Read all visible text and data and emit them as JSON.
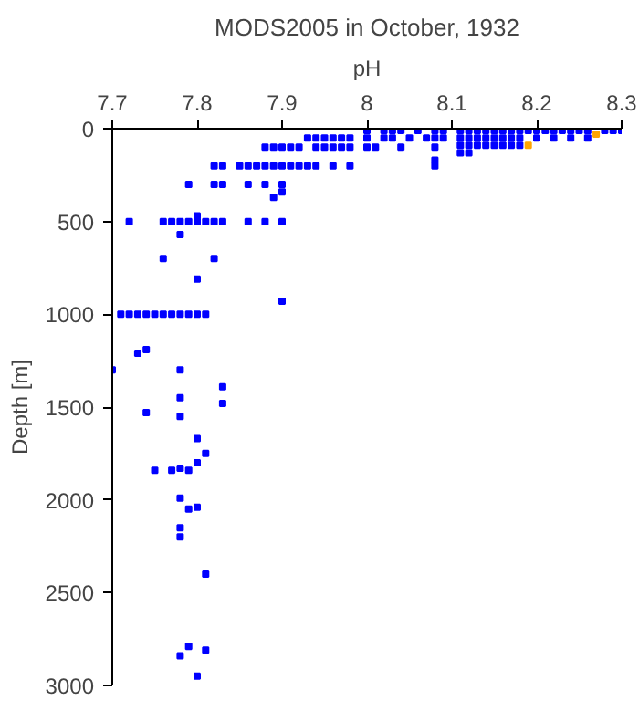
{
  "chart_data": {
    "type": "scatter",
    "title": "MODS2005 in October, 1932",
    "xlabel": "pH",
    "ylabel": "Depth [m]",
    "xlim": [
      7.7,
      8.3
    ],
    "xticks": [
      7.7,
      7.8,
      7.9,
      8,
      8.1,
      8.2,
      8.3
    ],
    "ylim": [
      3000,
      0
    ],
    "yticks": [
      0,
      500,
      1000,
      1500,
      2000,
      2500,
      3000
    ],
    "grid": false,
    "marker": "square",
    "series": [
      {
        "color": "#0000ff",
        "x": [
          7.8,
          7.9,
          7.71,
          7.72,
          7.73,
          7.74,
          7.75,
          7.76,
          7.77,
          7.78,
          7.79,
          7.8,
          7.81,
          7.73,
          7.74,
          7.7,
          7.78,
          7.83,
          7.83,
          7.74,
          7.78,
          7.78,
          7.8,
          7.81,
          7.8,
          7.75,
          7.77,
          7.78,
          7.79,
          7.78,
          7.79,
          7.8,
          7.78,
          7.78,
          7.81,
          7.79,
          7.78,
          7.81,
          7.8,
          7.72,
          7.76,
          7.77,
          7.78,
          7.79,
          7.8,
          7.81,
          7.82,
          7.83,
          7.86,
          7.88,
          7.9,
          7.78,
          7.8,
          7.76,
          7.82,
          7.79,
          7.82,
          7.83,
          7.86,
          7.88,
          7.9,
          7.89,
          7.9,
          7.82,
          7.83,
          7.85,
          7.86,
          7.87,
          7.88,
          7.89,
          7.9,
          7.91,
          7.92,
          7.93,
          7.94,
          7.96,
          7.98,
          7.88,
          7.89,
          7.9,
          7.91,
          7.92,
          7.94,
          7.95,
          7.96,
          7.97,
          7.98,
          8.0,
          8.01,
          8.04,
          8.08,
          8.08,
          8.08,
          7.93,
          7.94,
          7.95,
          7.96,
          7.97,
          7.98,
          8.0,
          8.02,
          8.03,
          8.05,
          8.07,
          8.08,
          8.09,
          8.0,
          8.02,
          8.03,
          8.04,
          8.06,
          8.08,
          8.09,
          8.11,
          8.12,
          8.13,
          8.14,
          8.15,
          8.16,
          8.17,
          8.18,
          8.19,
          8.2,
          8.21,
          8.22,
          8.23,
          8.24,
          8.25,
          8.26,
          8.28,
          8.29,
          8.3,
          8.11,
          8.12,
          8.13,
          8.14,
          8.15,
          8.16,
          8.17,
          8.18,
          8.2,
          8.22,
          8.24,
          8.26,
          8.11,
          8.12,
          8.13,
          8.14,
          8.15,
          8.16,
          8.17,
          8.18,
          8.11,
          8.12
        ],
        "values": [
          810,
          930,
          1000,
          1000,
          1000,
          1000,
          1000,
          1000,
          1000,
          1000,
          1000,
          1000,
          1000,
          1210,
          1190,
          1300,
          1300,
          1390,
          1480,
          1530,
          1450,
          1550,
          1670,
          1750,
          1800,
          1840,
          1840,
          1830,
          1840,
          1990,
          2050,
          2040,
          2150,
          2200,
          2400,
          2790,
          2840,
          2810,
          2950,
          500,
          500,
          500,
          500,
          500,
          500,
          500,
          500,
          500,
          500,
          500,
          500,
          570,
          470,
          700,
          700,
          300,
          300,
          300,
          300,
          300,
          300,
          370,
          340,
          200,
          200,
          200,
          200,
          200,
          200,
          200,
          200,
          200,
          200,
          200,
          200,
          200,
          200,
          100,
          100,
          100,
          100,
          100,
          100,
          100,
          100,
          100,
          100,
          100,
          100,
          100,
          100,
          200,
          170,
          50,
          50,
          50,
          50,
          50,
          50,
          50,
          50,
          50,
          50,
          50,
          50,
          50,
          10,
          10,
          10,
          10,
          10,
          10,
          10,
          10,
          10,
          10,
          10,
          10,
          10,
          10,
          10,
          10,
          10,
          10,
          10,
          10,
          10,
          10,
          10,
          10,
          10,
          10,
          50,
          50,
          50,
          50,
          50,
          50,
          50,
          50,
          50,
          50,
          50,
          50,
          90,
          90,
          90,
          90,
          90,
          90,
          90,
          90,
          130,
          130
        ]
      },
      {
        "color": "#ffa500",
        "x": [
          8.19,
          8.27
        ],
        "values": [
          90,
          30
        ]
      }
    ]
  }
}
